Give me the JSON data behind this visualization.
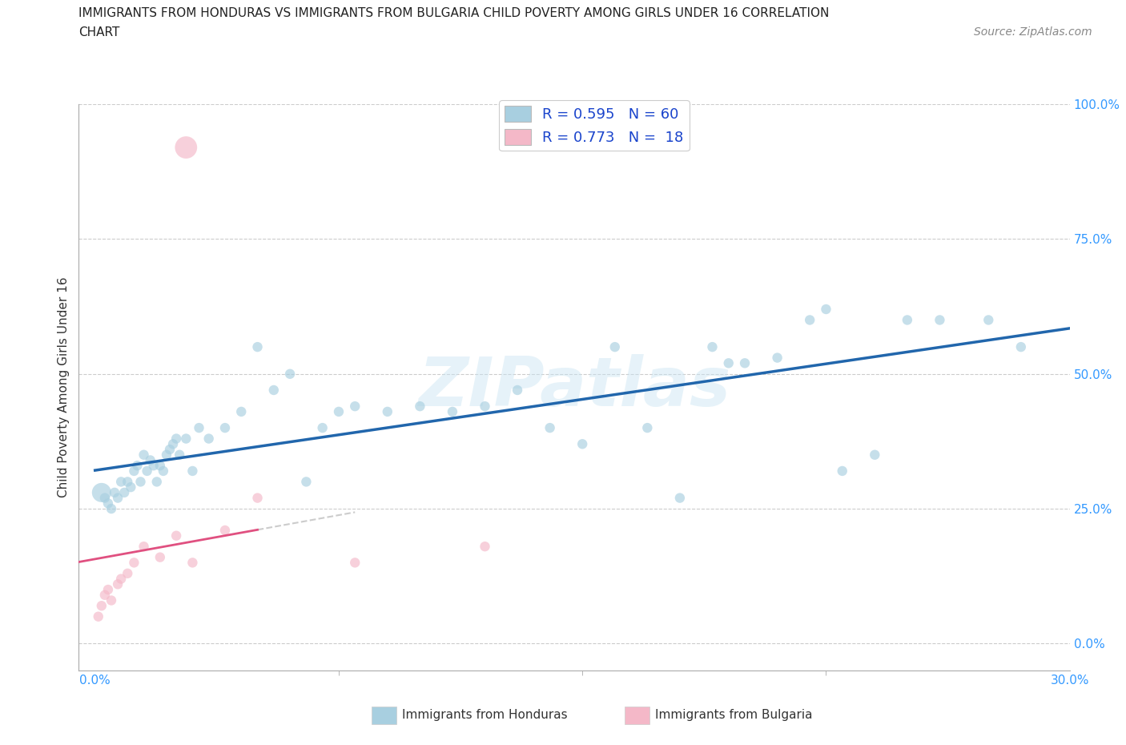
{
  "title_line1": "IMMIGRANTS FROM HONDURAS VS IMMIGRANTS FROM BULGARIA CHILD POVERTY AMONG GIRLS UNDER 16 CORRELATION",
  "title_line2": "CHART",
  "source": "Source: ZipAtlas.com",
  "ylabel": "Child Poverty Among Girls Under 16",
  "ytick_labels": [
    "0.0%",
    "25.0%",
    "50.0%",
    "75.0%",
    "100.0%"
  ],
  "ytick_values": [
    0,
    25,
    50,
    75,
    100
  ],
  "xtick_labels": [
    "0.0%",
    "30.0%"
  ],
  "xtick_values": [
    0,
    30
  ],
  "xlim": [
    -0.5,
    30
  ],
  "ylim": [
    -5,
    100
  ],
  "watermark": "ZIPatlas",
  "R_honduras": 0.595,
  "N_honduras": 60,
  "R_bulgaria": 0.773,
  "N_bulgaria": 18,
  "color_honduras": "#a8cfe0",
  "color_bulgaria": "#f4b8c8",
  "line_color_honduras": "#2166ac",
  "line_color_bulgaria": "#e05080",
  "honduras_x": [
    0.2,
    0.3,
    0.4,
    0.5,
    0.6,
    0.7,
    0.8,
    0.9,
    1.0,
    1.1,
    1.2,
    1.3,
    1.4,
    1.5,
    1.6,
    1.7,
    1.8,
    1.9,
    2.0,
    2.1,
    2.2,
    2.3,
    2.4,
    2.5,
    2.6,
    2.8,
    3.0,
    3.2,
    3.5,
    4.0,
    4.5,
    5.0,
    5.5,
    6.0,
    6.5,
    7.0,
    7.5,
    8.0,
    9.0,
    10.0,
    11.0,
    12.0,
    13.0,
    14.0,
    15.0,
    16.0,
    17.0,
    18.0,
    19.0,
    20.0,
    21.0,
    22.0,
    23.0,
    24.0,
    25.0,
    26.0,
    27.5,
    28.5,
    22.5,
    19.5
  ],
  "honduras_y": [
    28,
    27,
    26,
    25,
    28,
    27,
    30,
    28,
    30,
    29,
    32,
    33,
    30,
    35,
    32,
    34,
    33,
    30,
    33,
    32,
    35,
    36,
    37,
    38,
    35,
    38,
    32,
    40,
    38,
    40,
    43,
    55,
    47,
    50,
    30,
    40,
    43,
    44,
    43,
    44,
    43,
    44,
    47,
    40,
    37,
    55,
    40,
    27,
    55,
    52,
    53,
    60,
    32,
    35,
    60,
    60,
    60,
    55,
    62,
    52
  ],
  "honduras_sizes": [
    300,
    80,
    80,
    80,
    80,
    80,
    80,
    80,
    80,
    80,
    80,
    80,
    80,
    80,
    80,
    80,
    80,
    80,
    80,
    80,
    80,
    80,
    80,
    80,
    80,
    80,
    80,
    80,
    80,
    80,
    80,
    80,
    80,
    80,
    80,
    80,
    80,
    80,
    80,
    80,
    80,
    80,
    80,
    80,
    80,
    80,
    80,
    80,
    80,
    80,
    80,
    80,
    80,
    80,
    80,
    80,
    80,
    80,
    80,
    80
  ],
  "bulgaria_x": [
    0.1,
    0.2,
    0.3,
    0.4,
    0.5,
    0.7,
    0.8,
    1.0,
    1.2,
    1.5,
    2.0,
    2.5,
    3.0,
    4.0,
    5.0,
    8.0,
    12.0,
    2.8
  ],
  "bulgaria_y": [
    5,
    7,
    9,
    10,
    8,
    11,
    12,
    13,
    15,
    18,
    16,
    20,
    15,
    21,
    27,
    15,
    18,
    92
  ],
  "bulgaria_sizes": [
    80,
    80,
    80,
    80,
    80,
    80,
    80,
    80,
    80,
    80,
    80,
    80,
    80,
    80,
    80,
    80,
    80,
    400
  ]
}
